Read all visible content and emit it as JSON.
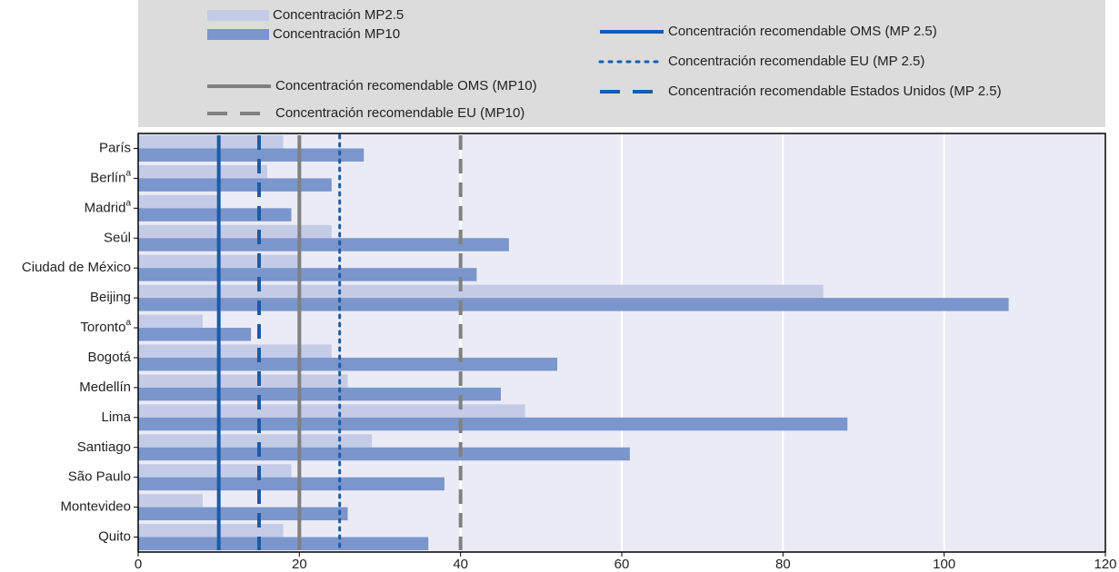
{
  "chart_data": {
    "type": "bar",
    "orientation": "horizontal",
    "categories": [
      "París",
      "Berlín",
      "Madrid",
      "Seúl",
      "Ciudad de México",
      "Beijing",
      "Toronto",
      "Bogotá",
      "Medellín",
      "Lima",
      "Santiago",
      "São Paulo",
      "Montevideo",
      "Quito"
    ],
    "category_notes": [
      null,
      "a",
      "a",
      null,
      null,
      null,
      "a",
      null,
      null,
      null,
      null,
      null,
      null,
      null
    ],
    "series": [
      {
        "name": "Concentración MP2.5",
        "color": "#c3cbe6",
        "values": [
          18,
          16,
          10,
          24,
          20,
          85,
          8,
          24,
          26,
          48,
          29,
          19,
          8,
          18
        ]
      },
      {
        "name": "Concentración MP10",
        "color": "#7b96cc",
        "values": [
          28,
          24,
          19,
          46,
          42,
          108,
          14,
          52,
          45,
          88,
          61,
          38,
          26,
          36
        ]
      }
    ],
    "reference_lines": [
      {
        "name": "Concentración recomendable OMS (MP10)",
        "value": 20,
        "color": "#808080",
        "style": "solid"
      },
      {
        "name": "Concentración recomendable EU (MP10)",
        "value": 40,
        "color": "#808080",
        "style": "dashed"
      },
      {
        "name": "Concentración recomendable OMS (MP 2.5)",
        "value": 10,
        "color": "#1a5ca8",
        "style": "solid"
      },
      {
        "name": "Concentración recomendable EU (MP 2.5)",
        "value": 25,
        "color": "#1a5ca8",
        "style": "dotted"
      },
      {
        "name": "Concentración recomendable Estados Unidos (MP 2.5)",
        "value": 15,
        "color": "#1a5ca8",
        "style": "dashed"
      }
    ],
    "xlim": [
      0,
      120
    ],
    "xticks": [
      0,
      20,
      40,
      60,
      80,
      100,
      120
    ],
    "grid": true,
    "legend": "top"
  }
}
